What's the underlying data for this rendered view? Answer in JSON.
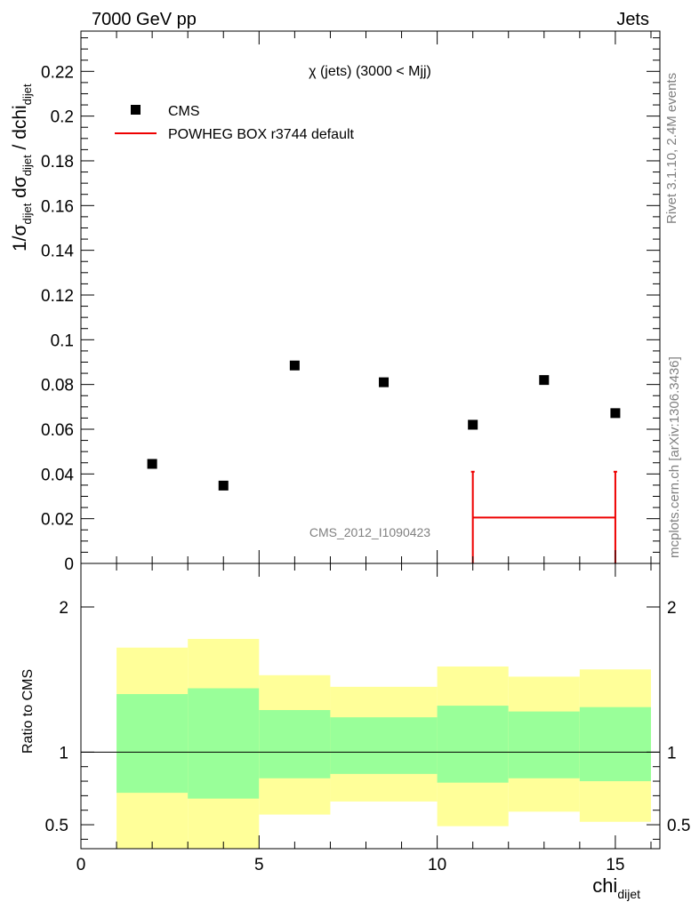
{
  "header": {
    "left": "7000 GeV pp",
    "right": "Jets"
  },
  "side": {
    "rivet": "Rivet 3.1.10,  2.4M events",
    "mcplots": "mcplots.cern.ch [arXiv:1306.3436]"
  },
  "colors": {
    "data": "#000000",
    "mc": "#ee0000",
    "band_inner": "#99ff99",
    "band_outer": "#ffff99"
  },
  "chart_data": [
    {
      "type": "scatter",
      "title": "χ (jets) (3000 < Mjj)",
      "ylabel": "1/σ_dijet dσ_dijet / dchi_dijet",
      "xlim": [
        0,
        16.25
      ],
      "ylim": [
        0,
        0.238
      ],
      "yticks": [
        0,
        0.02,
        0.04,
        0.06,
        0.08,
        0.1,
        0.12,
        0.14,
        0.16,
        0.18,
        0.2,
        0.22
      ],
      "ytick_labels": [
        "0",
        "0.02",
        "0.04",
        "0.06",
        "0.08",
        "0.1",
        "0.12",
        "0.14",
        "0.16",
        "0.18",
        "0.2",
        "0.22"
      ],
      "watermark": "CMS_2012_I1090423",
      "legend": [
        {
          "label": "CMS",
          "marker": "square"
        },
        {
          "label": "POWHEG BOX r3744 default",
          "marker": "line"
        }
      ],
      "series": [
        {
          "name": "CMS",
          "x": [
            2.0,
            4.0,
            6.0,
            8.5,
            11.0,
            13.0,
            15.0
          ],
          "y": [
            0.0445,
            0.0348,
            0.0885,
            0.081,
            0.062,
            0.082,
            0.0672
          ]
        },
        {
          "name": "POWHEG BOX r3744 default",
          "segments": [
            {
              "xlow": 11.0,
              "xhigh": 15.0,
              "y": 0.0205,
              "errlow": 0.0205,
              "errhigh": 0.0205
            }
          ]
        }
      ]
    },
    {
      "type": "area",
      "ylabel": "Ratio to CMS",
      "xlabel": "chi_dijet",
      "xlim": [
        0,
        16.25
      ],
      "ylim": [
        0.335,
        2.3
      ],
      "yticks": [
        0.5,
        1,
        2
      ],
      "ytick_labels": [
        "0.5",
        "1",
        "2"
      ],
      "xticks": [
        0,
        5,
        10,
        15
      ],
      "xtick_labels": [
        "0",
        "5",
        "10",
        "15"
      ],
      "reference_line": 1,
      "bins": [
        {
          "xlow": 1,
          "xhigh": 3,
          "inner": [
            0.72,
            1.4
          ],
          "outer": [
            0.0,
            1.72
          ]
        },
        {
          "xlow": 3,
          "xhigh": 5,
          "inner": [
            0.68,
            1.44
          ],
          "outer": [
            0.0,
            1.78
          ]
        },
        {
          "xlow": 5,
          "xhigh": 7,
          "inner": [
            0.82,
            1.29
          ],
          "outer": [
            0.57,
            1.53
          ]
        },
        {
          "xlow": 7,
          "xhigh": 10,
          "inner": [
            0.85,
            1.24
          ],
          "outer": [
            0.66,
            1.45
          ]
        },
        {
          "xlow": 10,
          "xhigh": 12,
          "inner": [
            0.79,
            1.32
          ],
          "outer": [
            0.49,
            1.59
          ]
        },
        {
          "xlow": 12,
          "xhigh": 14,
          "inner": [
            0.82,
            1.28
          ],
          "outer": [
            0.59,
            1.52
          ]
        },
        {
          "xlow": 14,
          "xhigh": 16,
          "inner": [
            0.8,
            1.31
          ],
          "outer": [
            0.52,
            1.57
          ]
        }
      ]
    }
  ]
}
